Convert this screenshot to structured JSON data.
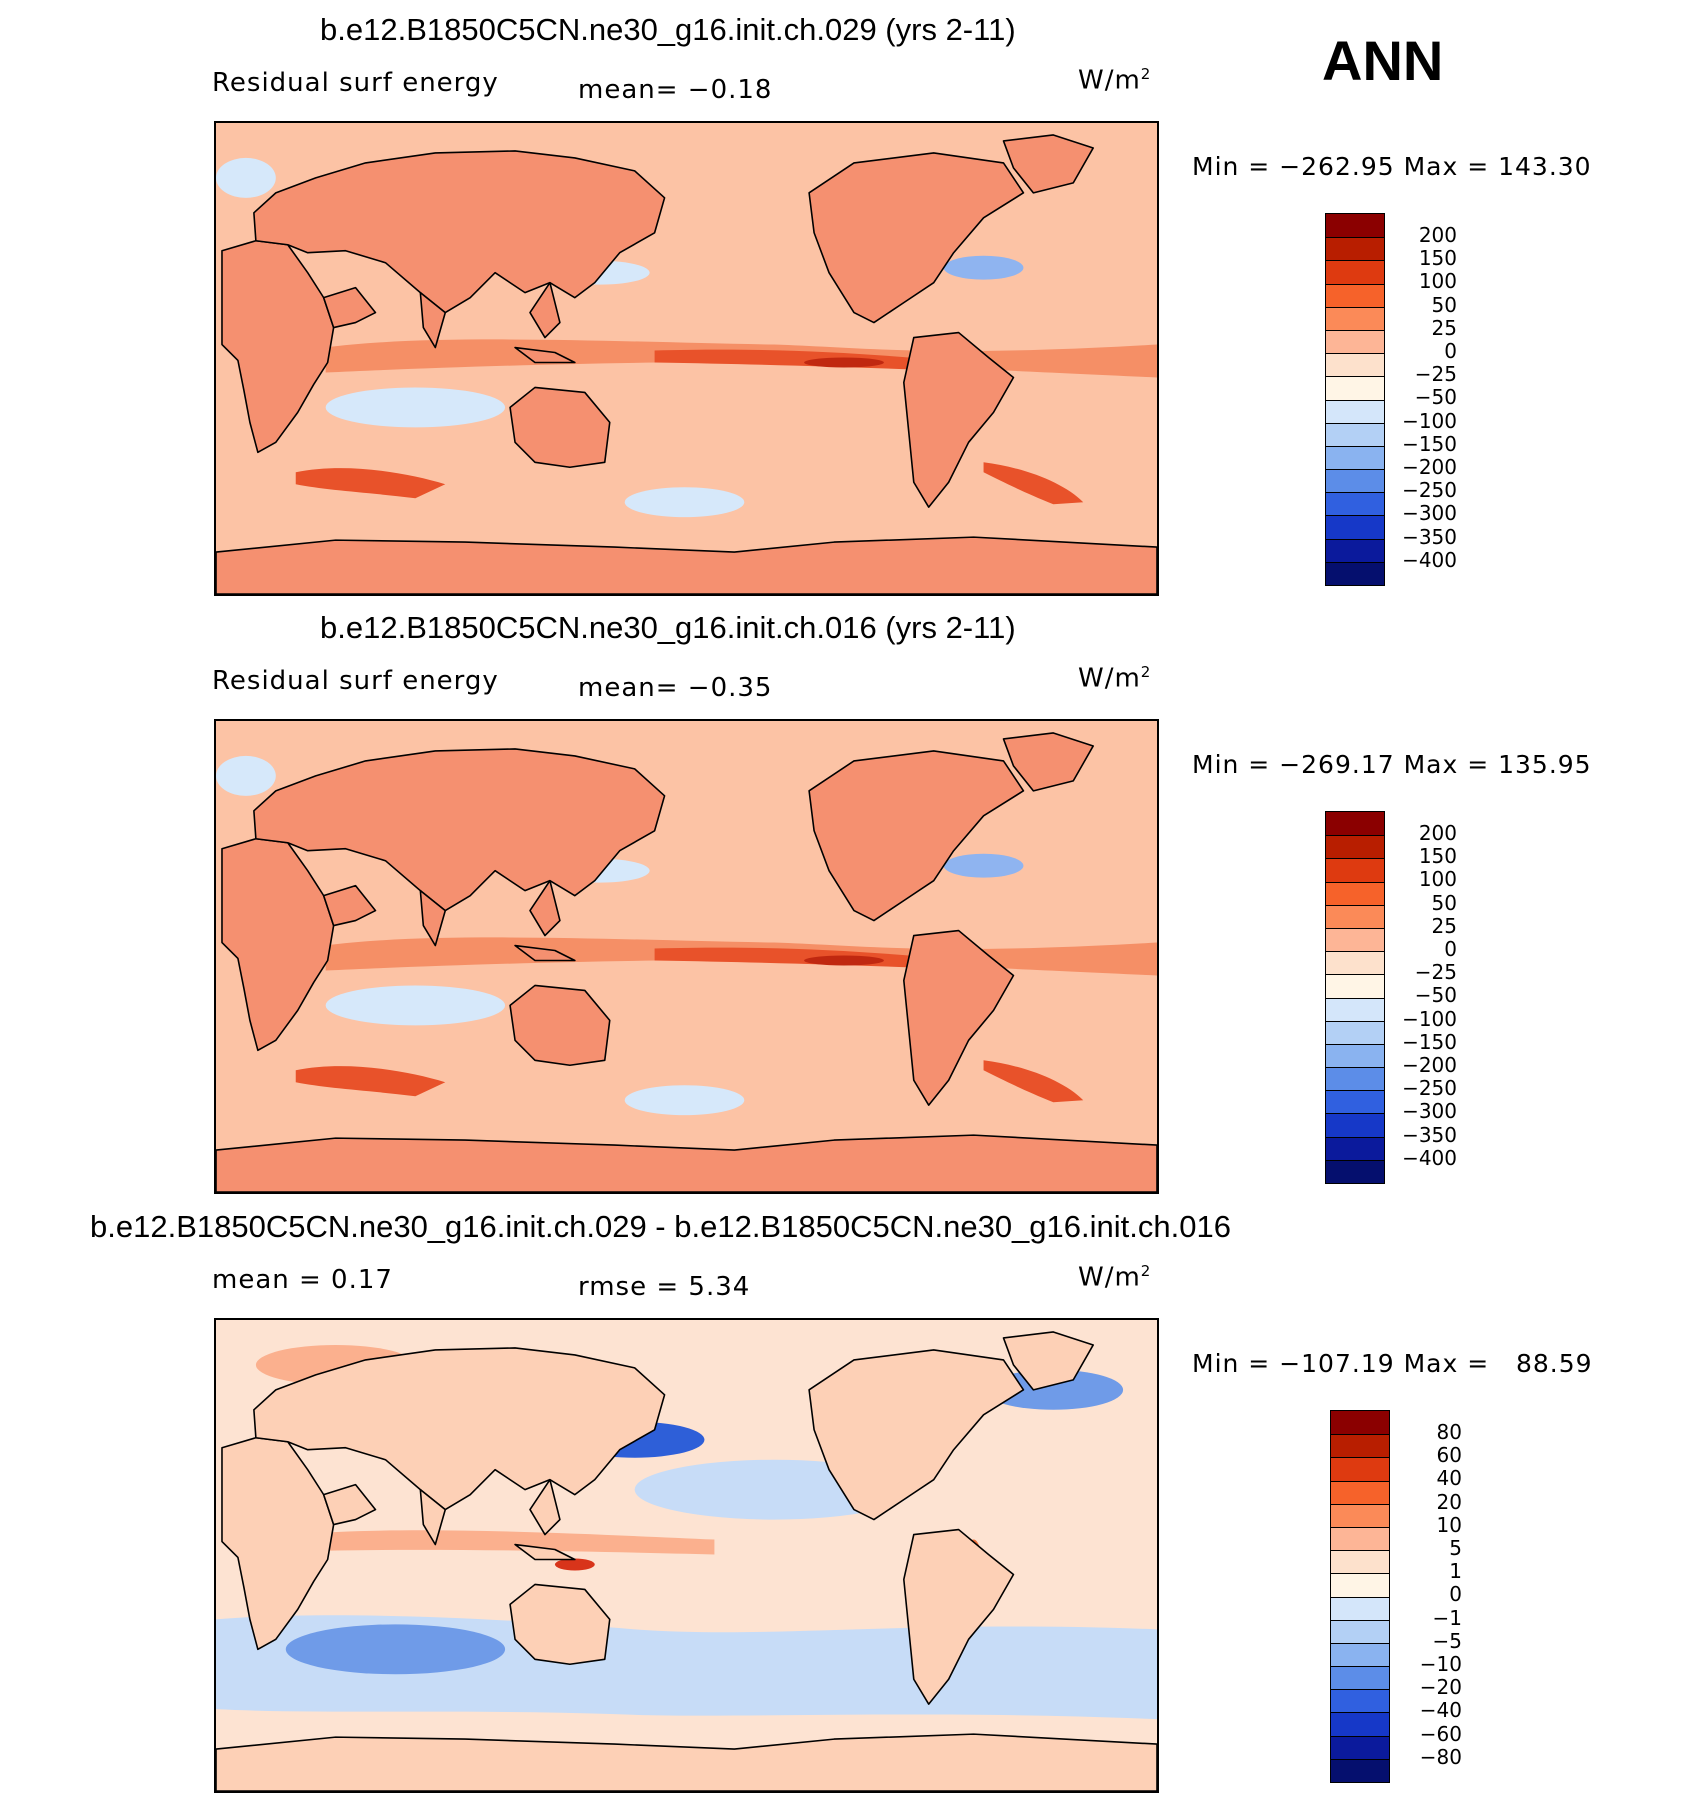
{
  "season": "ANN",
  "panels": [
    {
      "title": "b.e12.B1850C5CN.ne30_g16.init.ch.029 (yrs 2-11)",
      "left_label": "Residual surf energy",
      "center_label": "mean=   −0.18",
      "units": "W/m",
      "units_sup": "2",
      "minmax": "Min = −262.95 Max = 143.30",
      "colorbar": {
        "labels": [
          "200",
          "150",
          "100",
          "50",
          "25",
          "0",
          "−25",
          "−50",
          "−100",
          "−150",
          "−200",
          "−250",
          "−300",
          "−350",
          "−400"
        ],
        "colors": [
          "#8b0000",
          "#b81e00",
          "#de3a10",
          "#f6622a",
          "#fb8a58",
          "#fdb596",
          "#fde1cc",
          "#fff5e6",
          "#d4e6fa",
          "#b3d0f5",
          "#8ab3f0",
          "#5c8de8",
          "#3060e0",
          "#1638c8",
          "#0b1a9c",
          "#050f6e"
        ]
      },
      "map_colors": {
        "base": "#fcc3a5",
        "land": "#f59070",
        "warm": "#f58f66",
        "hot": "#e8522a",
        "hottest": "#c02810",
        "cool": "#d6e8fa",
        "cold": "#8fb4f0"
      }
    },
    {
      "title": "b.e12.B1850C5CN.ne30_g16.init.ch.016 (yrs 2-11)",
      "left_label": "Residual surf energy",
      "center_label": "mean=   −0.35",
      "units": "W/m",
      "units_sup": "2",
      "minmax": "Min = −269.17 Max = 135.95",
      "colorbar": {
        "labels": [
          "200",
          "150",
          "100",
          "50",
          "25",
          "0",
          "−25",
          "−50",
          "−100",
          "−150",
          "−200",
          "−250",
          "−300",
          "−350",
          "−400"
        ],
        "colors": [
          "#8b0000",
          "#b81e00",
          "#de3a10",
          "#f6622a",
          "#fb8a58",
          "#fdb596",
          "#fde1cc",
          "#fff5e6",
          "#d4e6fa",
          "#b3d0f5",
          "#8ab3f0",
          "#5c8de8",
          "#3060e0",
          "#1638c8",
          "#0b1a9c",
          "#050f6e"
        ]
      },
      "map_colors": {
        "base": "#fcc3a5",
        "land": "#f59070",
        "warm": "#f58f66",
        "hot": "#e8522a",
        "hottest": "#c02810",
        "cool": "#d6e8fa",
        "cold": "#8fb4f0"
      }
    },
    {
      "title": "b.e12.B1850C5CN.ne30_g16.init.ch.029 - b.e12.B1850C5CN.ne30_g16.init.ch.016",
      "left_label": "mean =    0.17",
      "center_label": "rmse =    5.34",
      "units": "W/m",
      "units_sup": "2",
      "minmax": "Min = −107.19 Max =   88.59",
      "colorbar": {
        "labels": [
          "80",
          "60",
          "40",
          "20",
          "10",
          "5",
          "1",
          "0",
          "−1",
          "−5",
          "−10",
          "−20",
          "−40",
          "−60",
          "−80"
        ],
        "colors": [
          "#8b0000",
          "#b81e00",
          "#de3a10",
          "#f6622a",
          "#fb8a58",
          "#fdb596",
          "#fde1cc",
          "#fff5e6",
          "#d4e6fa",
          "#b3d0f5",
          "#8ab3f0",
          "#5c8de8",
          "#3060e0",
          "#1638c8",
          "#0b1a9c",
          "#050f6e"
        ]
      },
      "map_colors": {
        "base": "#fde3d2",
        "land": "#fdd0b6",
        "warm": "#fbb08e",
        "hot": "#f0743f",
        "hottest": "#d8341a",
        "cool": "#c7dcf7",
        "cold": "#6f9be8"
      }
    }
  ]
}
